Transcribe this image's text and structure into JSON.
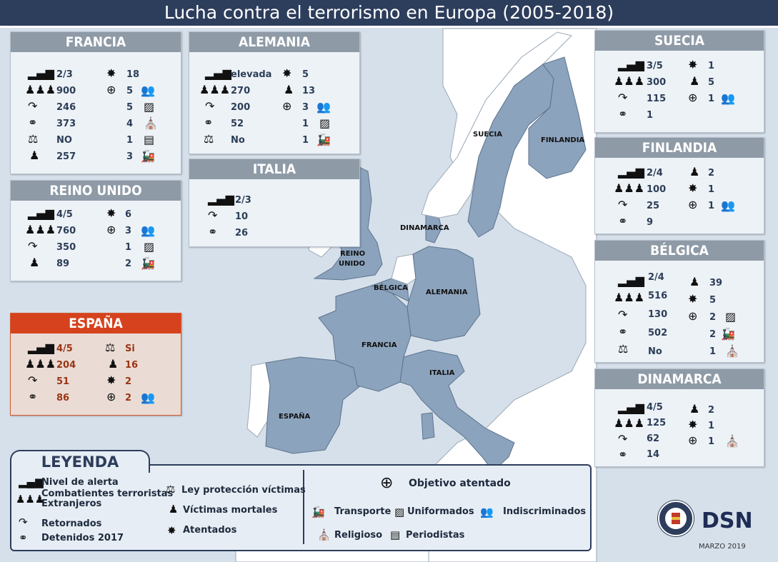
{
  "title": "Lucha contra el terrorismo en Europa (2005-2018)",
  "colors": {
    "title_bg": "#2d3d5c",
    "header_bg": "#8f9aa7",
    "spain_header": "#d6421d",
    "country_fill": "#8ca3bd",
    "land_fill": "#ffffff",
    "sea": "#d6e0ea"
  },
  "map_labels": {
    "suecia": "SUECIA",
    "finlandia": "FINLANDIA",
    "dinamarca": "DINAMARCA",
    "reino_unido_1": "REINO",
    "reino_unido_2": "UNIDO",
    "belgica": "BÉLGICA",
    "alemania": "ALEMANIA",
    "francia": "FRANCIA",
    "italia": "ITALIA",
    "espana": "ESPAÑA"
  },
  "cards": {
    "francia": {
      "name": "FRANCIA",
      "left": [
        "2/3",
        "900",
        "246",
        "373",
        "NO",
        "257"
      ],
      "right": [
        "18",
        "5",
        "5",
        "4",
        "1",
        "3"
      ]
    },
    "alemania": {
      "name": "ALEMANIA",
      "left": [
        "elevada",
        "270",
        "200",
        "52",
        "No"
      ],
      "right": [
        "5",
        "13",
        "3",
        "1",
        "1"
      ]
    },
    "italia": {
      "name": "ITALIA",
      "left": [
        "2/3",
        "10",
        "26"
      ]
    },
    "reino_unido": {
      "name": "REINO UNIDO",
      "left": [
        "4/5",
        "760",
        "350",
        "89"
      ],
      "right": [
        "6",
        "3",
        "1",
        "2"
      ]
    },
    "espana": {
      "name": "ESPAÑA",
      "left": [
        "4/5",
        "204",
        "51",
        "86"
      ],
      "right": [
        "Si",
        "16",
        "2",
        "2"
      ]
    },
    "suecia": {
      "name": "SUECIA",
      "left": [
        "3/5",
        "300",
        "115",
        "1"
      ],
      "right": [
        "1",
        "5",
        "1"
      ]
    },
    "finlandia": {
      "name": "FINLANDIA",
      "left": [
        "2/4",
        "100",
        "25",
        "9"
      ],
      "right": [
        "2",
        "1",
        "1"
      ]
    },
    "belgica": {
      "name": "BÉLGICA",
      "left": [
        "2/4",
        "516",
        "130",
        "502",
        "No"
      ],
      "right": [
        "39",
        "5",
        "2",
        "2",
        "1"
      ]
    },
    "dinamarca": {
      "name": "DINAMARCA",
      "left": [
        "4/5",
        "125",
        "62",
        "14"
      ],
      "right": [
        "2",
        "1",
        "1"
      ]
    }
  },
  "legend": {
    "title": "LEYENDA",
    "nivel": "Nivel de alerta",
    "combatientes_1": "Combatientes terroristas",
    "combatientes_2": "Extranjeros",
    "retornados": "Retornados",
    "detenidos": "Detenidos 2017",
    "ley": "Ley protección víctimas",
    "victimas": "Víctimas mortales",
    "atentados": "Atentados",
    "objetivo": "Objetivo atentado",
    "transporte": "Transporte",
    "uniformados": "Uniformados",
    "indiscriminados": "Indiscriminados",
    "religioso": "Religioso",
    "periodistas": "Periodistas"
  },
  "brand": "DSN",
  "date": "MARZO 2019",
  "icons": [
    "alert-level-icon",
    "fighters-icon",
    "returnees-icon",
    "handcuffs-icon",
    "scales-icon",
    "victim-icon",
    "explosion-icon",
    "crosshair-icon",
    "crowd-icon",
    "uniformed-icon",
    "religious-icon",
    "journalist-icon",
    "train-icon"
  ]
}
